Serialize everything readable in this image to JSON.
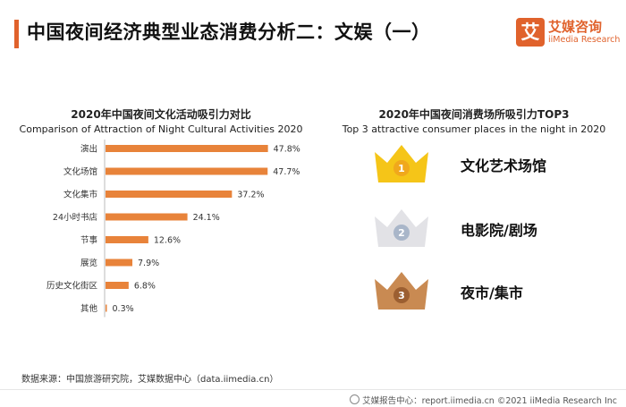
{
  "header": {
    "title": "中国夜间经济典型业态消费分析二：文娱（一）"
  },
  "brand": {
    "logo_char": "艾",
    "name": "艾媒咨询",
    "sub": "iiMedia Research",
    "accent": "#e0622c"
  },
  "left_chart": {
    "title_cn": "2020年中国夜间文化活动吸引力对比",
    "title_en": "Comparison of Attraction of Night Cultural Activities 2020"
  },
  "chart_data": {
    "type": "bar",
    "orientation": "horizontal",
    "title": "2020年中国夜间文化活动吸引力对比",
    "subtitle": "Comparison of Attraction of Night Cultural Activities 2020",
    "categories": [
      "演出",
      "文化场馆",
      "文化集市",
      "24小时书店",
      "节事",
      "展览",
      "历史文化街区",
      "其他"
    ],
    "values": [
      47.8,
      47.7,
      37.2,
      24.1,
      12.6,
      7.9,
      6.8,
      0.3
    ],
    "value_labels": [
      "47.8%",
      "47.7%",
      "37.2%",
      "24.1%",
      "12.6%",
      "7.9%",
      "6.8%",
      "0.3%"
    ],
    "unit": "%",
    "xlim": [
      0,
      50
    ],
    "grid": false,
    "bar_color": "#e8833a"
  },
  "right_panel": {
    "title_cn": "2020年中国夜间消费场所吸引力TOP3",
    "title_en": "Top 3 attractive consumer places in the night in 2020",
    "items": [
      {
        "rank": "1",
        "label": "文化艺术场馆",
        "crown_color": "#f5c518",
        "medal_color": "#f0a81c"
      },
      {
        "rank": "2",
        "label": "电影院/剧场",
        "crown_color": "#e2e2e6",
        "medal_color": "#a9b6c9"
      },
      {
        "rank": "3",
        "label": "夜市/集市",
        "crown_color": "#c98a52",
        "medal_color": "#9c5f31"
      }
    ]
  },
  "source_text": "数据来源：中国旅游研究院，艾媒数据中心（data.iimedia.cn）",
  "footer_text": "艾媒报告中心：report.iimedia.cn ©2021 iiMedia Research Inc"
}
